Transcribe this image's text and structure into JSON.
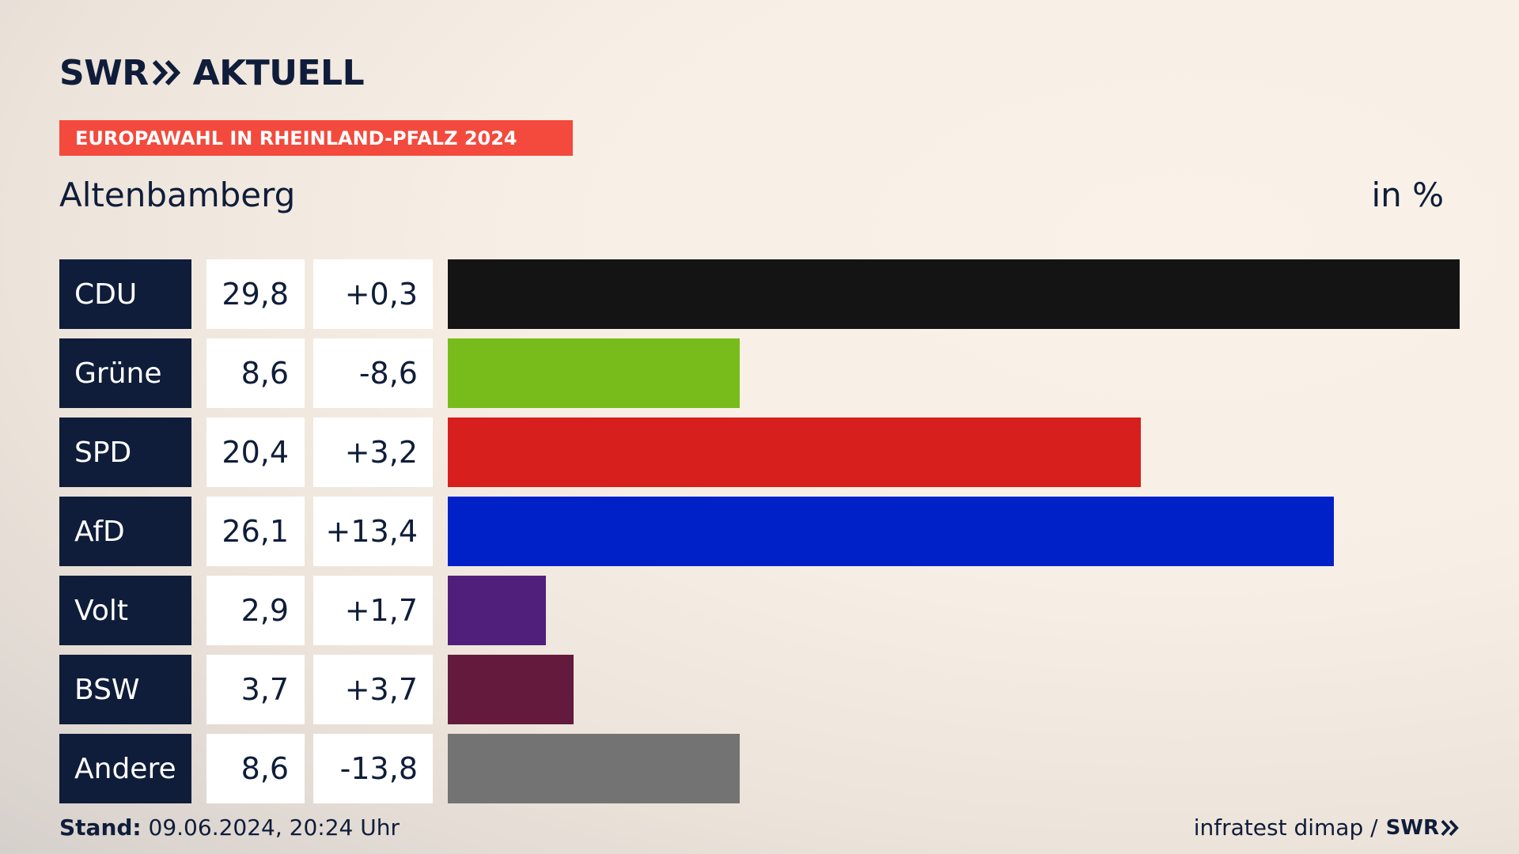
{
  "brand": {
    "name": "SWR",
    "product": "AKTUELL"
  },
  "badge": "EUROPAWAHL IN RHEINLAND-PFALZ 2024",
  "region": "Altenbamberg",
  "unit": "in %",
  "footer": {
    "stand_label": "Stand:",
    "stand_value": "09.06.2024, 20:24 Uhr",
    "source": "infratest dimap /",
    "source_brand": "SWR"
  },
  "chart_data": {
    "type": "bar",
    "orientation": "horizontal",
    "title": "Altenbamberg",
    "unit": "in %",
    "xlim": [
      0,
      29.8
    ],
    "categories": [
      "CDU",
      "Grüne",
      "SPD",
      "AfD",
      "Volt",
      "BSW",
      "Andere"
    ],
    "values": [
      29.8,
      8.6,
      20.4,
      26.1,
      2.9,
      3.7,
      8.6
    ],
    "value_labels": [
      "29,8",
      "8,6",
      "20,4",
      "26,1",
      "2,9",
      "3,7",
      "8,6"
    ],
    "diff_labels": [
      "+0,3",
      "-8,6",
      "+3,2",
      "+13,4",
      "+1,7",
      "+3,7",
      "-13,8"
    ],
    "colors": [
      "#141414",
      "#78bc1b",
      "#d71f1d",
      "#0021c8",
      "#4f1f7b",
      "#641a3c",
      "#737373"
    ]
  }
}
